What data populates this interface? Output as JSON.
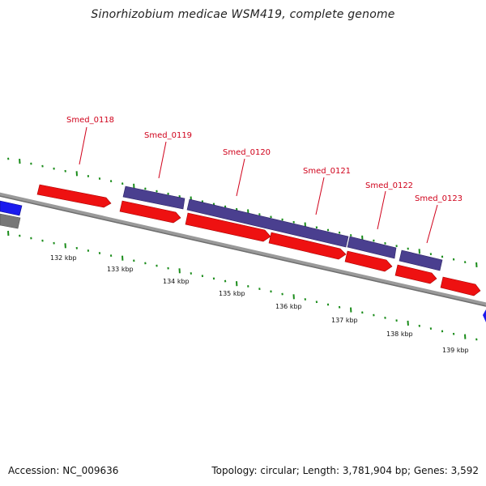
{
  "title": "Sinorhizobium medicae WSM419, complete genome",
  "footer": {
    "accession": "Accession: NC_009636",
    "stats": "Topology: circular; Length: 3,781,904 bp; Genes: 3,592"
  },
  "colors": {
    "forward_gene": "#ee1111",
    "cds": "#4a3f8f",
    "reverse_gene": "#1a1aee",
    "other_gene": "#777777",
    "backbone": "#888888",
    "ticks": "#1a8c1a",
    "label": "#d0021b"
  },
  "gene_labels": [
    "Smed_0118",
    "Smed_0119",
    "Smed_0120",
    "Smed_0121",
    "Smed_0122",
    "Smed_0123"
  ],
  "kbp_labels": [
    "132 kbp",
    "133 kbp",
    "134 kbp",
    "135 kbp",
    "136 kbp",
    "137 kbp",
    "138 kbp",
    "139 kbp"
  ]
}
